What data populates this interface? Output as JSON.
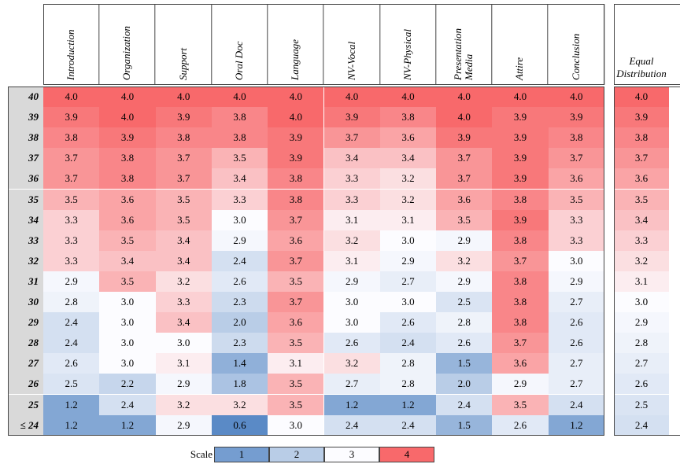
{
  "table": {
    "columns": [
      "Introduction",
      "Organization",
      "Support",
      "Oral Doc",
      "Language",
      "NV-Vocal",
      "NV-Physical",
      "Presentation Media",
      "Attire",
      "Conclusion"
    ],
    "extra_column": "Equal Distribution",
    "rows": [
      {
        "label": "40",
        "values": [
          "4.0",
          "4.0",
          "4.0",
          "4.0",
          "4.0",
          "4.0",
          "4.0",
          "4.0",
          "4.0",
          "4.0"
        ],
        "extra": "4.0"
      },
      {
        "label": "39",
        "values": [
          "3.9",
          "4.0",
          "3.9",
          "3.8",
          "4.0",
          "3.9",
          "3.8",
          "4.0",
          "3.9",
          "3.9"
        ],
        "extra": "3.9"
      },
      {
        "label": "38",
        "values": [
          "3.8",
          "3.9",
          "3.8",
          "3.8",
          "3.9",
          "3.7",
          "3.6",
          "3.9",
          "3.9",
          "3.8"
        ],
        "extra": "3.8"
      },
      {
        "label": "37",
        "values": [
          "3.7",
          "3.8",
          "3.7",
          "3.5",
          "3.9",
          "3.4",
          "3.4",
          "3.7",
          "3.9",
          "3.7"
        ],
        "extra": "3.7"
      },
      {
        "label": "36",
        "values": [
          "3.7",
          "3.8",
          "3.7",
          "3.4",
          "3.8",
          "3.3",
          "3.2",
          "3.7",
          "3.9",
          "3.6"
        ],
        "extra": "3.6"
      },
      {
        "label": "35",
        "values": [
          "3.5",
          "3.6",
          "3.5",
          "3.3",
          "3.8",
          "3.3",
          "3.2",
          "3.6",
          "3.8",
          "3.5"
        ],
        "extra": "3.5"
      },
      {
        "label": "34",
        "values": [
          "3.3",
          "3.6",
          "3.5",
          "3.0",
          "3.7",
          "3.1",
          "3.1",
          "3.5",
          "3.9",
          "3.3"
        ],
        "extra": "3.4"
      },
      {
        "label": "33",
        "values": [
          "3.3",
          "3.5",
          "3.4",
          "2.9",
          "3.6",
          "3.2",
          "3.0",
          "2.9",
          "3.8",
          "3.3"
        ],
        "extra": "3.3"
      },
      {
        "label": "32",
        "values": [
          "3.3",
          "3.4",
          "3.4",
          "2.4",
          "3.7",
          "3.1",
          "2.9",
          "3.2",
          "3.7",
          "3.0"
        ],
        "extra": "3.2"
      },
      {
        "label": "31",
        "values": [
          "2.9",
          "3.5",
          "3.2",
          "2.6",
          "3.5",
          "2.9",
          "2.7",
          "2.9",
          "3.8",
          "2.9"
        ],
        "extra": "3.1"
      },
      {
        "label": "30",
        "values": [
          "2.8",
          "3.0",
          "3.3",
          "2.3",
          "3.7",
          "3.0",
          "3.0",
          "2.5",
          "3.8",
          "2.7"
        ],
        "extra": "3.0"
      },
      {
        "label": "29",
        "values": [
          "2.4",
          "3.0",
          "3.4",
          "2.0",
          "3.6",
          "3.0",
          "2.6",
          "2.8",
          "3.8",
          "2.6"
        ],
        "extra": "2.9"
      },
      {
        "label": "28",
        "values": [
          "2.4",
          "3.0",
          "3.0",
          "2.3",
          "3.5",
          "2.6",
          "2.4",
          "2.6",
          "3.7",
          "2.6"
        ],
        "extra": "2.8"
      },
      {
        "label": "27",
        "values": [
          "2.6",
          "3.0",
          "3.1",
          "1.4",
          "3.1",
          "3.2",
          "2.8",
          "1.5",
          "3.6",
          "2.7"
        ],
        "extra": "2.7"
      },
      {
        "label": "26",
        "values": [
          "2.5",
          "2.2",
          "2.9",
          "1.8",
          "3.5",
          "2.7",
          "2.8",
          "2.0",
          "2.9",
          "2.7"
        ],
        "extra": "2.6"
      },
      {
        "label": "25",
        "values": [
          "1.2",
          "2.4",
          "3.2",
          "3.2",
          "3.5",
          "1.2",
          "1.2",
          "2.4",
          "3.5",
          "2.4"
        ],
        "extra": "2.5"
      },
      {
        "label": "≤ 24",
        "values": [
          "1.2",
          "1.2",
          "2.9",
          "0.6",
          "3.0",
          "2.4",
          "2.4",
          "1.5",
          "2.6",
          "1.2"
        ],
        "extra": "2.4"
      }
    ]
  },
  "scale": {
    "label": "Scale",
    "levels": [
      "1",
      "2",
      "3",
      "4"
    ]
  }
}
